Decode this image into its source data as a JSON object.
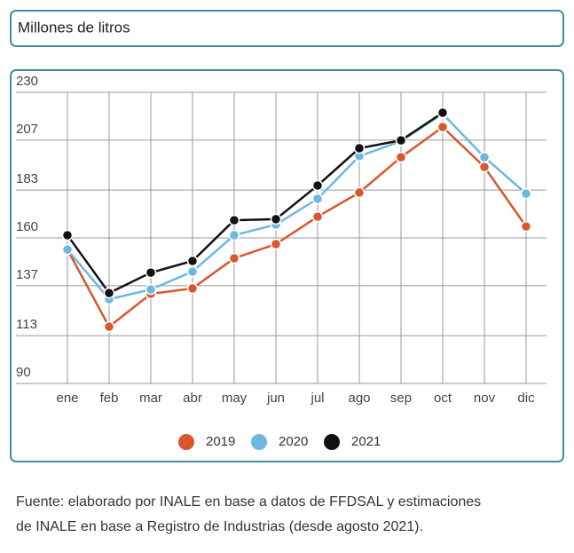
{
  "chart_data": {
    "type": "line",
    "title": "Millones de litros",
    "categories": [
      "ene",
      "feb",
      "mar",
      "abr",
      "may",
      "jun",
      "jul",
      "ago",
      "sep",
      "oct",
      "nov",
      "dic"
    ],
    "ylim": [
      90,
      230
    ],
    "yticks": [
      90,
      113,
      137,
      160,
      183,
      207,
      230
    ],
    "grid": true,
    "legend": "bottom",
    "series": [
      {
        "name": "2019",
        "color": "#d9572b",
        "values": [
          154.4,
          117.3,
          133.1,
          135.7,
          150.2,
          157.0,
          170.2,
          181.8,
          198.8,
          213.3,
          194.1,
          165.5
        ]
      },
      {
        "name": "2020",
        "color": "#6cb8e0",
        "values": [
          154.4,
          130.5,
          135.2,
          143.8,
          161.3,
          166.4,
          178.8,
          199.3,
          206.5,
          219.7,
          198.8,
          181.3
        ]
      },
      {
        "name": "2021",
        "color": "#111111",
        "values": [
          161.3,
          133.5,
          143.3,
          148.9,
          168.5,
          169.0,
          185.2,
          203.1,
          206.9,
          220.2,
          null,
          null
        ]
      }
    ]
  },
  "footer": {
    "lines": [
      "Fuente: elaborado por INALE en base a datos de FFDSAL y estimaciones",
      "de INALE en base a Registro de Industrias (desde agosto 2021)."
    ]
  }
}
